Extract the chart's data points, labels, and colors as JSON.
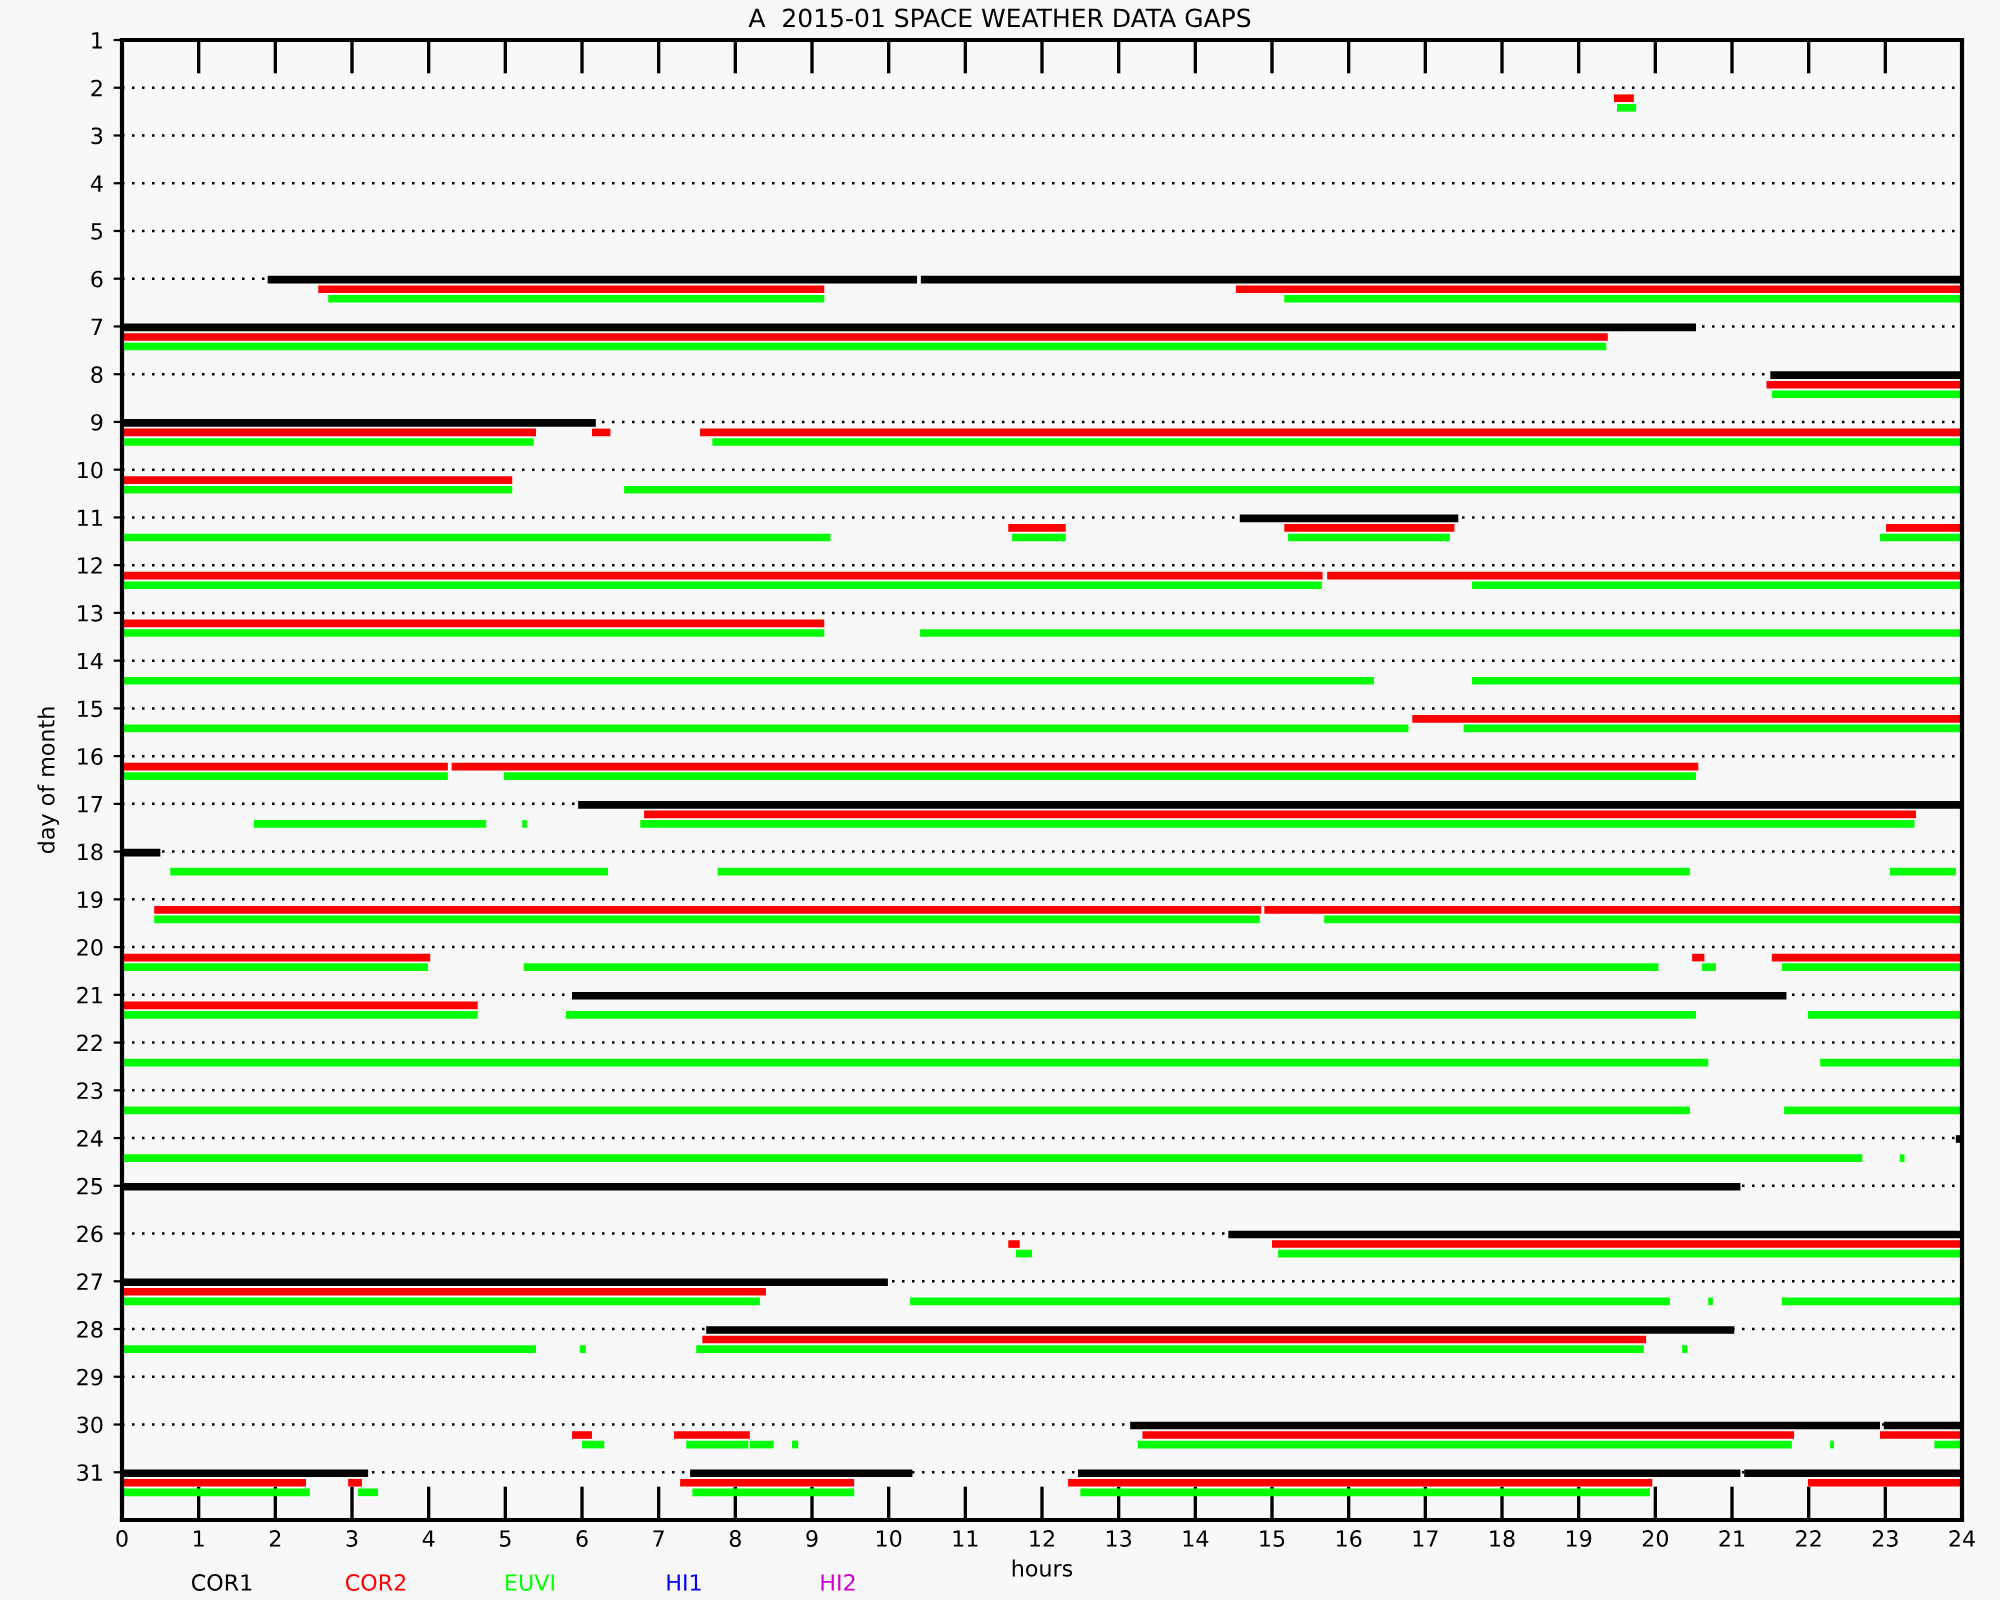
{
  "chart_data": {
    "type": "bar",
    "orientation": "horizontal",
    "title": "A  2015-01 SPACE WEATHER DATA GAPS",
    "xlabel": "hours",
    "ylabel": "day of month",
    "categories": [
      "1",
      "2",
      "3",
      "4",
      "5",
      "6",
      "7",
      "8",
      "9",
      "10",
      "11",
      "12",
      "13",
      "14",
      "15",
      "16",
      "17",
      "18",
      "19",
      "20",
      "21",
      "22",
      "23",
      "24",
      "25",
      "26",
      "27",
      "28",
      "29",
      "30",
      "31"
    ],
    "xlim": [
      0,
      24
    ],
    "xticks": [
      0,
      1,
      2,
      3,
      4,
      5,
      6,
      7,
      8,
      9,
      10,
      11,
      12,
      13,
      14,
      15,
      16,
      17,
      18,
      19,
      20,
      21,
      22,
      23,
      24
    ],
    "grid": "y",
    "legend": "bottom",
    "series": [
      {
        "name": "COR1",
        "color": "#000000",
        "base": [
          null,
          null,
          null,
          null,
          null,
          1.9,
          0,
          21.5,
          0,
          null,
          14.58,
          null,
          null,
          null,
          null,
          null,
          5.95,
          0,
          null,
          null,
          5.87,
          null,
          null,
          23.92,
          0,
          14.43,
          0,
          7.62,
          null,
          13.15,
          0
        ],
        "values": [
          null,
          null,
          null,
          null,
          null,
          8.47,
          20.53,
          2.5,
          6.18,
          null,
          2.85,
          null,
          null,
          null,
          null,
          null,
          18.05,
          0.5,
          null,
          null,
          15.84,
          null,
          null,
          0.08,
          21.11,
          9.57,
          9.99,
          13.41,
          null,
          9.78,
          3.21
        ]
      },
      {
        "color": "#000000",
        "base": [
          null,
          null,
          null,
          null,
          null,
          10.42,
          null,
          null,
          null,
          null,
          null,
          null,
          null,
          null,
          null,
          null,
          null,
          null,
          null,
          null,
          null,
          null,
          null,
          null,
          null,
          null,
          null,
          null,
          null,
          22.98,
          7.41
        ],
        "values": [
          null,
          null,
          null,
          null,
          null,
          13.58,
          null,
          null,
          null,
          null,
          null,
          null,
          null,
          null,
          null,
          null,
          null,
          null,
          null,
          null,
          null,
          null,
          null,
          null,
          null,
          null,
          null,
          null,
          null,
          1.02,
          2.9
        ]
      },
      {
        "color": "#000000",
        "base": [
          null,
          null,
          null,
          null,
          null,
          null,
          null,
          null,
          null,
          null,
          null,
          null,
          null,
          null,
          null,
          null,
          null,
          null,
          null,
          null,
          null,
          null,
          null,
          null,
          null,
          null,
          null,
          null,
          null,
          null,
          12.47
        ],
        "values": [
          null,
          null,
          null,
          null,
          null,
          null,
          null,
          null,
          null,
          null,
          null,
          null,
          null,
          null,
          null,
          null,
          null,
          null,
          null,
          null,
          null,
          null,
          null,
          null,
          null,
          null,
          null,
          null,
          null,
          null,
          8.64
        ]
      },
      {
        "color": "#000000",
        "base": [
          null,
          null,
          null,
          null,
          null,
          null,
          null,
          null,
          null,
          null,
          null,
          null,
          null,
          null,
          null,
          null,
          null,
          null,
          null,
          null,
          null,
          null,
          null,
          null,
          null,
          null,
          null,
          null,
          null,
          null,
          21.16
        ],
        "values": [
          null,
          null,
          null,
          null,
          null,
          null,
          null,
          null,
          null,
          null,
          null,
          null,
          null,
          null,
          null,
          null,
          null,
          null,
          null,
          null,
          null,
          null,
          null,
          null,
          null,
          null,
          null,
          null,
          null,
          null,
          2.84
        ]
      },
      {
        "name": "COR2",
        "color": "#ff0000",
        "base": [
          null,
          19.46,
          null,
          null,
          null,
          2.56,
          0,
          21.45,
          0,
          0,
          11.56,
          0,
          0,
          null,
          16.83,
          0,
          6.81,
          null,
          0.42,
          0,
          0,
          null,
          null,
          null,
          null,
          11.56,
          0,
          7.57,
          null,
          5.87,
          0
        ],
        "values": [
          null,
          0.26,
          null,
          null,
          null,
          6.6,
          19.38,
          2.55,
          5.4,
          5.09,
          0.75,
          15.66,
          9.16,
          null,
          7.17,
          4.25,
          16.59,
          null,
          14.44,
          4.02,
          4.64,
          null,
          null,
          null,
          null,
          0.15,
          8.4,
          12.31,
          null,
          0.26,
          2.4
        ]
      },
      {
        "color": "#ff0000",
        "base": [
          null,
          null,
          null,
          null,
          null,
          14.53,
          null,
          null,
          6.13,
          null,
          15.16,
          15.72,
          null,
          null,
          null,
          4.3,
          null,
          null,
          14.9,
          20.48,
          null,
          null,
          null,
          null,
          null,
          15.0,
          null,
          null,
          null,
          7.2,
          2.95
        ],
        "values": [
          null,
          null,
          null,
          null,
          null,
          9.47,
          null,
          null,
          0.24,
          null,
          2.22,
          8.28,
          null,
          null,
          null,
          16.26,
          null,
          null,
          9.1,
          0.16,
          null,
          null,
          null,
          null,
          null,
          9.0,
          null,
          null,
          null,
          0.99,
          0.18
        ]
      },
      {
        "color": "#ff0000",
        "base": [
          null,
          null,
          null,
          null,
          null,
          null,
          null,
          null,
          7.54,
          null,
          23.01,
          null,
          null,
          null,
          null,
          null,
          null,
          null,
          null,
          21.52,
          null,
          null,
          null,
          null,
          null,
          null,
          null,
          null,
          null,
          13.31,
          7.28
        ],
        "values": [
          null,
          null,
          null,
          null,
          null,
          null,
          null,
          null,
          16.46,
          null,
          0.99,
          null,
          null,
          null,
          null,
          null,
          null,
          null,
          null,
          2.48,
          null,
          null,
          null,
          null,
          null,
          null,
          null,
          null,
          null,
          8.5,
          2.27
        ]
      },
      {
        "color": "#ff0000",
        "base": [
          null,
          null,
          null,
          null,
          null,
          null,
          null,
          null,
          null,
          null,
          null,
          null,
          null,
          null,
          null,
          null,
          null,
          null,
          null,
          null,
          null,
          null,
          null,
          null,
          null,
          null,
          null,
          null,
          null,
          22.93,
          12.34
        ],
        "values": [
          null,
          null,
          null,
          null,
          null,
          null,
          null,
          null,
          null,
          null,
          null,
          null,
          null,
          null,
          null,
          null,
          null,
          null,
          null,
          null,
          null,
          null,
          null,
          null,
          null,
          null,
          null,
          null,
          null,
          1.07,
          7.62
        ]
      },
      {
        "color": "#ff0000",
        "base": [
          null,
          null,
          null,
          null,
          null,
          null,
          null,
          null,
          null,
          null,
          null,
          null,
          null,
          null,
          null,
          null,
          null,
          null,
          null,
          null,
          null,
          null,
          null,
          null,
          null,
          null,
          null,
          null,
          null,
          null,
          21.99
        ],
        "values": [
          null,
          null,
          null,
          null,
          null,
          null,
          null,
          null,
          null,
          null,
          null,
          null,
          null,
          null,
          null,
          null,
          null,
          null,
          null,
          null,
          null,
          null,
          null,
          null,
          null,
          null,
          null,
          null,
          null,
          null,
          2.01
        ]
      },
      {
        "name": "EUVI",
        "color": "#00ff00",
        "base": [
          null,
          19.5,
          null,
          null,
          null,
          2.69,
          0,
          21.52,
          0,
          0,
          0,
          0,
          0,
          0,
          0,
          0,
          1.72,
          0.63,
          0.42,
          0,
          0,
          0,
          0,
          0,
          null,
          11.66,
          0,
          0,
          null,
          6.0,
          0
        ],
        "values": [
          null,
          0.25,
          null,
          null,
          null,
          6.47,
          19.36,
          2.48,
          5.37,
          5.09,
          9.24,
          15.65,
          9.16,
          16.33,
          16.78,
          4.25,
          3.03,
          5.71,
          14.42,
          3.99,
          4.64,
          20.69,
          20.45,
          22.7,
          null,
          0.21,
          8.32,
          5.4,
          null,
          0.29,
          2.45
        ]
      },
      {
        "color": "#00ff00",
        "base": [
          null,
          null,
          null,
          null,
          null,
          15.16,
          null,
          null,
          7.7,
          6.55,
          11.61,
          17.61,
          10.41,
          17.61,
          17.5,
          4.98,
          5.22,
          7.77,
          15.68,
          5.24,
          5.79,
          22.15,
          21.68,
          23.19,
          null,
          15.08,
          10.28,
          5.97,
          null,
          7.36,
          3.08
        ],
        "values": [
          null,
          null,
          null,
          null,
          null,
          8.84,
          null,
          null,
          16.3,
          17.45,
          0.7,
          6.39,
          13.59,
          6.39,
          6.5,
          15.55,
          0.06,
          12.68,
          8.32,
          14.8,
          14.74,
          1.85,
          2.32,
          0.06,
          null,
          8.92,
          9.91,
          0.08,
          null,
          0.81,
          0.26
        ]
      },
      {
        "color": "#00ff00",
        "base": [
          null,
          null,
          null,
          null,
          null,
          null,
          null,
          null,
          null,
          null,
          15.21,
          null,
          null,
          null,
          null,
          null,
          6.76,
          23.06,
          null,
          20.61,
          21.99,
          null,
          null,
          null,
          null,
          null,
          20.69,
          7.49,
          null,
          8.19,
          7.44
        ],
        "values": [
          null,
          null,
          null,
          null,
          null,
          null,
          null,
          null,
          null,
          null,
          2.11,
          null,
          null,
          null,
          null,
          null,
          16.62,
          0.86,
          null,
          0.18,
          2.01,
          null,
          null,
          null,
          null,
          null,
          0.06,
          12.36,
          null,
          0.31,
          2.11
        ]
      },
      {
        "color": "#00ff00",
        "base": [
          null,
          null,
          null,
          null,
          null,
          null,
          null,
          null,
          null,
          null,
          22.93,
          null,
          null,
          null,
          null,
          null,
          null,
          null,
          null,
          21.65,
          null,
          null,
          null,
          null,
          null,
          null,
          21.65,
          20.35,
          null,
          8.74,
          12.5
        ],
        "values": [
          null,
          null,
          null,
          null,
          null,
          null,
          null,
          null,
          null,
          null,
          1.07,
          null,
          null,
          null,
          null,
          null,
          null,
          null,
          null,
          2.35,
          null,
          null,
          null,
          null,
          null,
          null,
          2.35,
          0.07,
          null,
          0.08,
          7.43
        ]
      },
      {
        "color": "#00ff00",
        "base": [
          null,
          null,
          null,
          null,
          null,
          null,
          null,
          null,
          null,
          null,
          null,
          null,
          null,
          null,
          null,
          null,
          null,
          null,
          null,
          null,
          null,
          null,
          null,
          null,
          null,
          null,
          null,
          null,
          null,
          13.25,
          null
        ],
        "values": [
          null,
          null,
          null,
          null,
          null,
          null,
          null,
          null,
          null,
          null,
          null,
          null,
          null,
          null,
          null,
          null,
          null,
          null,
          null,
          null,
          null,
          null,
          null,
          null,
          null,
          null,
          null,
          null,
          null,
          8.53,
          null
        ]
      },
      {
        "color": "#00ff00",
        "base": [
          null,
          null,
          null,
          null,
          null,
          null,
          null,
          null,
          null,
          null,
          null,
          null,
          null,
          null,
          null,
          null,
          null,
          null,
          null,
          null,
          null,
          null,
          null,
          null,
          null,
          null,
          null,
          null,
          null,
          22.28,
          null
        ],
        "values": [
          null,
          null,
          null,
          null,
          null,
          null,
          null,
          null,
          null,
          null,
          null,
          null,
          null,
          null,
          null,
          null,
          null,
          null,
          null,
          null,
          null,
          null,
          null,
          null,
          null,
          null,
          null,
          null,
          null,
          0.05,
          null
        ]
      },
      {
        "color": "#00ff00",
        "base": [
          null,
          null,
          null,
          null,
          null,
          null,
          null,
          null,
          null,
          null,
          null,
          null,
          null,
          null,
          null,
          null,
          null,
          null,
          null,
          null,
          null,
          null,
          null,
          null,
          null,
          null,
          null,
          null,
          null,
          23.64,
          null
        ],
        "values": [
          null,
          null,
          null,
          null,
          null,
          null,
          null,
          null,
          null,
          null,
          null,
          null,
          null,
          null,
          null,
          null,
          null,
          null,
          null,
          null,
          null,
          null,
          null,
          null,
          null,
          null,
          null,
          null,
          null,
          0.36,
          null
        ]
      },
      {
        "name": "HI1",
        "color": "#0000ff",
        "values": [
          null,
          null,
          null,
          null,
          null,
          null,
          null,
          null,
          null,
          null,
          null,
          null,
          null,
          null,
          null,
          null,
          null,
          null,
          null,
          null,
          null,
          null,
          null,
          null,
          null,
          null,
          null,
          null,
          null,
          null,
          null
        ]
      },
      {
        "name": "HI2",
        "color": "#cc00cc",
        "values": [
          null,
          null,
          null,
          null,
          null,
          null,
          null,
          null,
          null,
          null,
          null,
          null,
          null,
          null,
          null,
          null,
          null,
          null,
          null,
          null,
          null,
          null,
          null,
          null,
          null,
          null,
          null,
          null,
          null,
          null,
          null
        ]
      }
    ]
  }
}
